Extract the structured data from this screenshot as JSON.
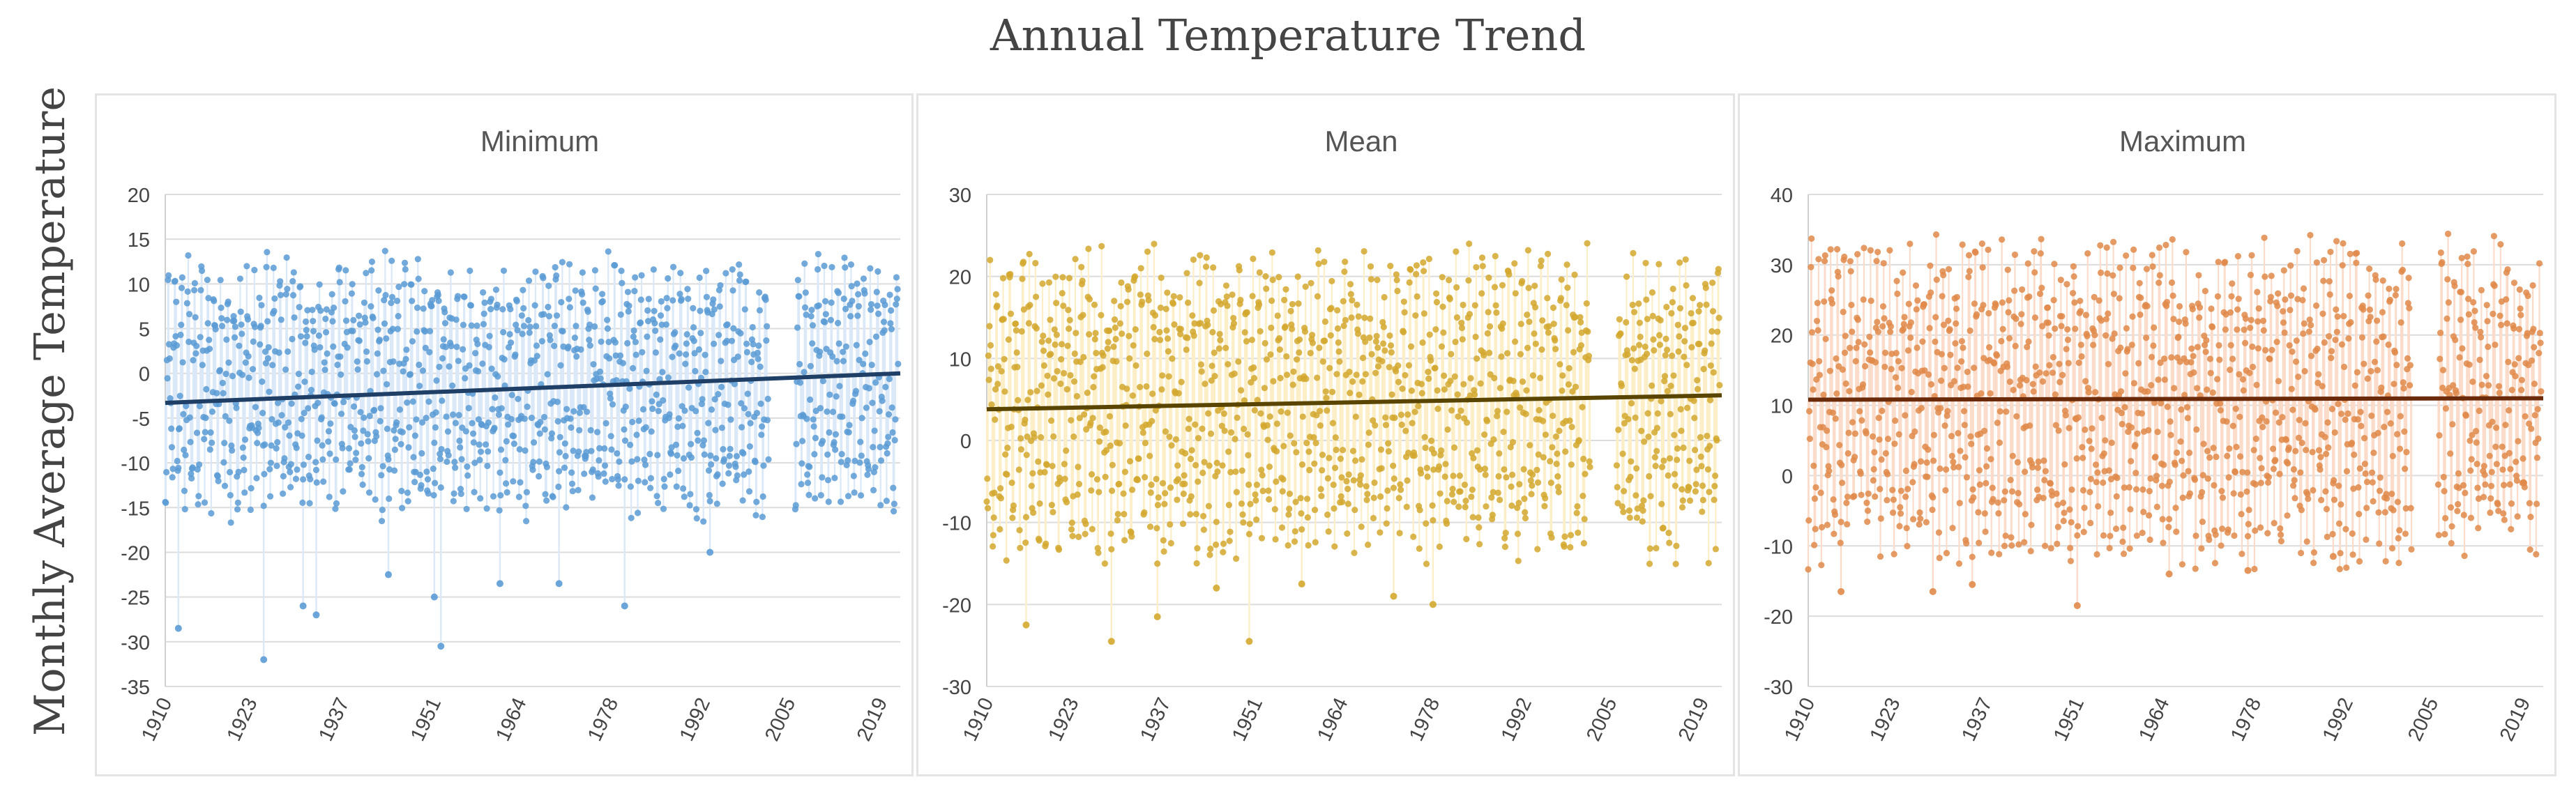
{
  "figure_title": "Annual Temperature Trend",
  "y_axis_label": "Monthly Average Temperature",
  "chart_data": [
    {
      "type": "scatter",
      "title": "Minimum",
      "ylim": [
        -35,
        20
      ],
      "yticks": [
        20,
        15,
        10,
        5,
        0,
        -5,
        -10,
        -15,
        -20,
        -25,
        -30,
        -35
      ],
      "xlim": [
        1910,
        2022
      ],
      "xticks": [
        1910,
        1923,
        1937,
        1951,
        1964,
        1978,
        1992,
        2005,
        2019
      ],
      "gap": [
        2002,
        2006
      ],
      "trend": {
        "start": [
          1910,
          -3.3
        ],
        "end": [
          2022,
          0.0
        ]
      },
      "seasonal": {
        "center": -1.5,
        "amplitude": 10.5
      },
      "outliers": [
        [
          1912,
          -28.5
        ],
        [
          1925,
          -32
        ],
        [
          1931,
          -26
        ],
        [
          1933,
          -27
        ],
        [
          1944,
          -22.5
        ],
        [
          1951,
          -25
        ],
        [
          1952,
          -30.5
        ],
        [
          1961,
          -23.5
        ],
        [
          1970,
          -23.5
        ],
        [
          1980,
          -26
        ],
        [
          1993,
          -20
        ]
      ],
      "color": "#5b9bd5",
      "fill": "#dbe8f7",
      "trend_color": "#1f3f66"
    },
    {
      "type": "scatter",
      "title": "Mean",
      "ylim": [
        -30,
        30
      ],
      "yticks": [
        30,
        20,
        10,
        0,
        -10,
        -20,
        -30
      ],
      "xlim": [
        1910,
        2022
      ],
      "xticks": [
        1910,
        1923,
        1937,
        1951,
        1964,
        1978,
        1992,
        2005,
        2019
      ],
      "gap": [
        2002,
        2006
      ],
      "trend": {
        "start": [
          1910,
          3.8
        ],
        "end": [
          2022,
          5.5
        ]
      },
      "seasonal": {
        "center": 4.5,
        "amplitude": 13.5
      },
      "outliers": [
        [
          1916,
          -22.5
        ],
        [
          1929,
          -24.5
        ],
        [
          1936,
          -21.5
        ],
        [
          1945,
          -18
        ],
        [
          1950,
          -24.5
        ],
        [
          1958,
          -17.5
        ],
        [
          1972,
          -19
        ],
        [
          1978,
          -20
        ]
      ],
      "color": "#d4a82f",
      "fill": "#fcefc8",
      "trend_color": "#5a4500"
    },
    {
      "type": "scatter",
      "title": "Maximum",
      "ylim": [
        -30,
        40
      ],
      "yticks": [
        40,
        30,
        20,
        10,
        0,
        -10,
        -20,
        -30
      ],
      "xlim": [
        1910,
        2022
      ],
      "xticks": [
        1910,
        1923,
        1937,
        1951,
        1964,
        1978,
        1992,
        2005,
        2019
      ],
      "gap": [
        2002,
        2006
      ],
      "trend": {
        "start": [
          1910,
          10.8
        ],
        "end": [
          2022,
          11.0
        ]
      },
      "seasonal": {
        "center": 10.5,
        "amplitude": 16.5
      },
      "outliers": [
        [
          1915,
          -16.5
        ],
        [
          1929,
          -16.5
        ],
        [
          1935,
          -15.5
        ],
        [
          1951,
          -18.5
        ],
        [
          1965,
          -14
        ],
        [
          1977,
          -13.5
        ],
        [
          1990,
          -11.5
        ]
      ],
      "color": "#e08a4a",
      "fill": "#fbdccb",
      "trend_color": "#6b2a0a"
    }
  ]
}
